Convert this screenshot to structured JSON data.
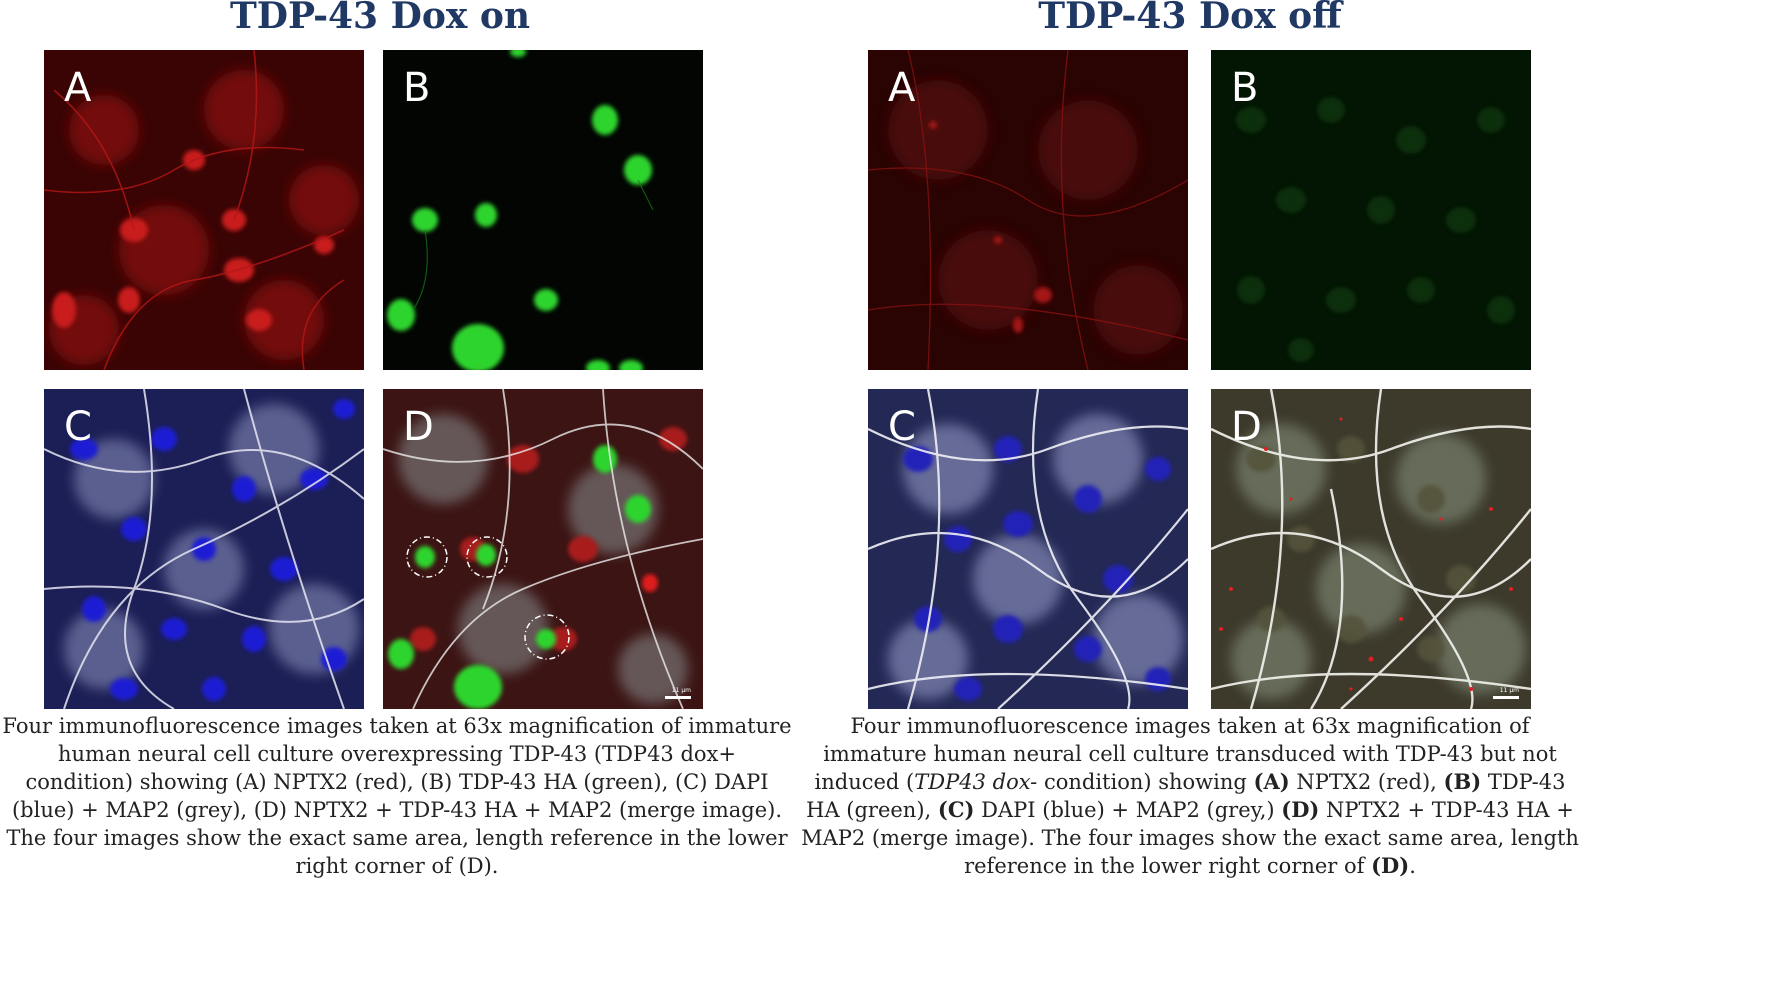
{
  "left_figure": {
    "title": "TDP-43 Dox on",
    "panels": [
      {
        "letter": "A",
        "stain": "NPTX2 (red)"
      },
      {
        "letter": "B",
        "stain": "TDP-43 HA (green)"
      },
      {
        "letter": "C",
        "stain": "DAPI (blue) + MAP2 (grey)"
      },
      {
        "letter": "D",
        "stain": "merge",
        "scale_bar": "11 µm"
      }
    ],
    "caption": {
      "p1": "Four immunofluorescence images taken at 63x magnification of immature human neural cell culture overexpressing TDP-43 (TDP43 dox+ condition) showing (A) NPTX2 (red), (B) TDP-43 HA (green), (C) DAPI (blue) + MAP2 (grey), (D) NPTX2 + TDP-43 HA + MAP2 (merge image). The four images show the exact same area, length reference in the lower right corner of (D)."
    }
  },
  "right_figure": {
    "title": "TDP-43 Dox off",
    "panels": [
      {
        "letter": "A",
        "stain": "NPTX2 (red)"
      },
      {
        "letter": "B",
        "stain": "TDP-43 HA (green)"
      },
      {
        "letter": "C",
        "stain": "DAPI (blue) + MAP2 (grey)"
      },
      {
        "letter": "D",
        "stain": "merge",
        "scale_bar": "11 µm"
      }
    ],
    "caption": {
      "t1": "Four immunofluorescence images taken at 63x magnification of immature human neural cell culture transduced with TDP-43 but not induced (",
      "t2": "TDP43 dox-",
      "t3": " condition) showing ",
      "b1": "(A)",
      "t4": " NPTX2 (red), ",
      "b2": "(B)",
      "t5": " TDP-43 HA (green), ",
      "b3": "(C)",
      "t6": " DAPI (blue) + MAP2 (grey,) ",
      "b4": "(D)",
      "t7": " NPTX2 + TDP-43 HA + MAP2 (merge image). The four images show the exact same area, length reference in the lower right corner of ",
      "b5": "(D)",
      "t8": "."
    }
  }
}
